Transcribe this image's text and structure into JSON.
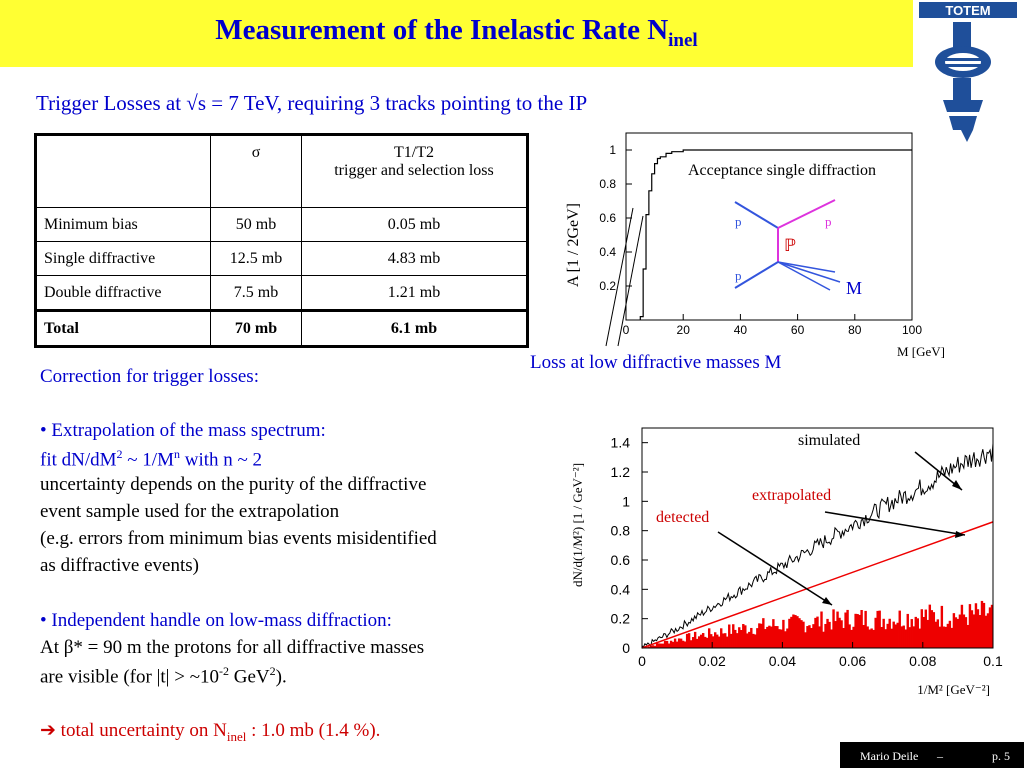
{
  "title": {
    "main": "Measurement of the Inelastic Rate N",
    "sub": "inel"
  },
  "subtitle": "Trigger Losses at √s = 7 TeV, requiring 3 tracks pointing to the IP",
  "table": {
    "header": [
      "",
      "σ",
      "T1/T2",
      "trigger and selection loss"
    ],
    "rows": [
      [
        "Minimum bias",
        "50 mb",
        "0.05 mb"
      ],
      [
        "Single diffractive",
        "12.5 mb",
        "4.83 mb"
      ],
      [
        "Double diffractive",
        "7.5 mb",
        "1.21 mb"
      ],
      [
        "Total",
        "70 mb",
        "6.1 mb"
      ]
    ]
  },
  "text": {
    "correction": "Correction for trigger losses:",
    "b1_head": "•  Extrapolation of the mass spectrum:",
    "b1_fit_a": "fit dN/dM",
    "b1_fit_sup": "2",
    "b1_fit_b": " ~ 1/M",
    "b1_fit_sup2": "n",
    "b1_fit_c": " with n ~ 2",
    "b1_l1": "uncertainty depends on the purity of the diffractive",
    "b1_l2": "event sample used for the extrapolation",
    "b1_l3": "(e.g. errors from minimum bias events misidentified",
    "b1_l4": "as diffractive events)",
    "b2_head": "•  Independent handle on low-mass diffraction:",
    "b2_l1": "At β* = 90 m the protons for all diffractive masses",
    "b2_l2a": "are visible (for |t| > ~10",
    "b2_l2sup": "-2",
    "b2_l2b": " GeV",
    "b2_l2sup2": "2",
    "b2_l2c": ").",
    "total_a": "➔ total uncertainty on N",
    "total_sub": "inel",
    "total_b": " : 1.0 mb  (1.4 %)."
  },
  "logo_text": "TOTEM",
  "footer": {
    "author": "Mario Deile",
    "dash": "–",
    "page": "p. 5"
  },
  "chart_data": [
    {
      "type": "line",
      "ylabel": "A [1 / 2GeV]",
      "xlabel": "M [GeV]",
      "xlim": [
        0,
        100
      ],
      "ylim": [
        0,
        1.1
      ],
      "x_ticks": [
        "0",
        "20",
        "40",
        "60",
        "80",
        "100"
      ],
      "y_ticks": [
        "0.2",
        "0.4",
        "0.6",
        "0.8",
        "1"
      ],
      "series": [
        {
          "x": [
            5,
            6,
            7,
            8,
            9,
            10,
            11,
            12,
            14,
            16,
            18,
            20,
            25,
            30,
            35,
            40,
            50,
            60,
            70,
            80,
            90,
            100
          ],
          "y": [
            0.02,
            0.3,
            0.62,
            0.76,
            0.86,
            0.92,
            0.95,
            0.96,
            0.98,
            0.99,
            0.99,
            1.0,
            1.0,
            1.0,
            1.0,
            1.0,
            1.0,
            1.0,
            1.0,
            1.0,
            1.0,
            1.0
          ]
        }
      ],
      "annotations": {
        "inset_title": "Acceptance single diffraction",
        "p": "p",
        "pomeron": "ℙ",
        "m": "M",
        "loss": "Loss at low diffractive masses M"
      }
    },
    {
      "type": "line",
      "ylabel": "dN/d(1/M²) [1 / GeV⁻²]",
      "xlabel": "1/M² [GeV⁻²]",
      "xlim": [
        0,
        0.1
      ],
      "ylim": [
        0,
        1.5
      ],
      "x_ticks": [
        "0",
        "0.02",
        "0.04",
        "0.06",
        "0.08",
        "0.1"
      ],
      "y_ticks": [
        "0",
        "0.2",
        "0.4",
        "0.6",
        "0.8",
        "1",
        "1.2",
        "1.4"
      ],
      "series": [
        {
          "name": "simulated",
          "x": [
            0,
            0.01,
            0.02,
            0.03,
            0.04,
            0.05,
            0.06,
            0.07,
            0.08,
            0.09,
            0.1
          ],
          "y": [
            0.0,
            0.13,
            0.28,
            0.42,
            0.56,
            0.7,
            0.84,
            0.98,
            1.1,
            1.25,
            1.35
          ]
        },
        {
          "name": "extrapolated",
          "x": [
            0,
            0.1
          ],
          "y": [
            0.0,
            0.86
          ]
        },
        {
          "name": "detected",
          "x": [
            0,
            0.01,
            0.02,
            0.03,
            0.04,
            0.05,
            0.06,
            0.07,
            0.08,
            0.09,
            0.1
          ],
          "y": [
            0.0,
            0.06,
            0.1,
            0.14,
            0.16,
            0.18,
            0.2,
            0.2,
            0.22,
            0.22,
            0.24
          ]
        }
      ],
      "colors": {
        "simulated": "#000000",
        "extrapolated": "#ee0000",
        "detected": "#ee0000"
      }
    }
  ]
}
